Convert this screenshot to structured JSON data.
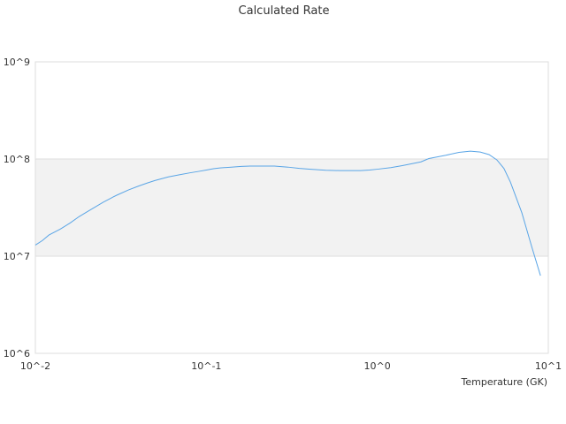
{
  "chart_data": {
    "type": "line",
    "title": "Calculated Rate",
    "xlabel": "Temperature (GK)",
    "ylabel": "",
    "xscale": "log",
    "yscale": "log",
    "xlim": [
      0.01,
      10
    ],
    "ylim": [
      1000000,
      1000000000
    ],
    "x_ticks": [
      "10^-2",
      "10^-1",
      "10^0",
      "10^1"
    ],
    "y_ticks": [
      "10^6",
      "10^7",
      "10^8",
      "10^9"
    ],
    "grid": true,
    "alternating_band_color": "#f2f2f2",
    "series": [
      {
        "color": "#5aa5e6",
        "x": [
          0.01,
          0.011,
          0.012,
          0.014,
          0.016,
          0.018,
          0.02,
          0.022,
          0.025,
          0.028,
          0.03,
          0.035,
          0.04,
          0.045,
          0.05,
          0.06,
          0.07,
          0.08,
          0.09,
          0.1,
          0.11,
          0.12,
          0.14,
          0.16,
          0.18,
          0.2,
          0.25,
          0.3,
          0.35,
          0.4,
          0.5,
          0.6,
          0.7,
          0.8,
          0.9,
          1.0,
          1.2,
          1.4,
          1.6,
          1.8,
          2.0,
          2.5,
          3.0,
          3.5,
          4.0,
          4.5,
          5.0,
          5.5,
          6.0,
          7.0,
          8.0,
          9.0
        ],
        "y": [
          13000000,
          14500000,
          16500000,
          19000000,
          22000000,
          25500000,
          28500000,
          31500000,
          36000000,
          40000000,
          42500000,
          48000000,
          52500000,
          56500000,
          60000000,
          65500000,
          69000000,
          72000000,
          74500000,
          77000000,
          79500000,
          81000000,
          82500000,
          84000000,
          84500000,
          84500000,
          84500000,
          82500000,
          80000000,
          78500000,
          76500000,
          76000000,
          76000000,
          76000000,
          77000000,
          78500000,
          81500000,
          85500000,
          89500000,
          93500000,
          101000000,
          109000000,
          117000000,
          120500000,
          118000000,
          111000000,
          98000000,
          80000000,
          58000000,
          28000000,
          12500000,
          6300000
        ]
      }
    ]
  }
}
